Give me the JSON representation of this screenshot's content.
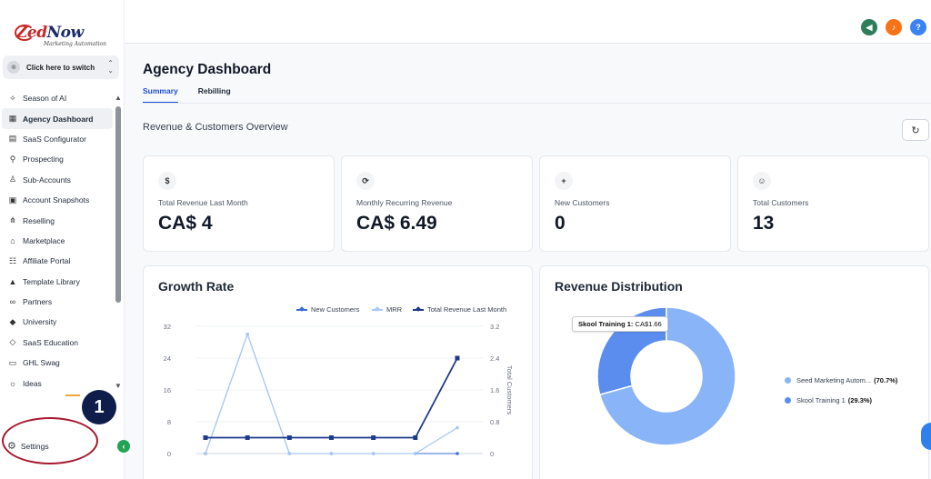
{
  "logo": {
    "brand_main": "Zed",
    "brand_rest": "Now",
    "tagline": "Marketing Automation"
  },
  "switcher": {
    "label": "Click here to switch",
    "icon": "location-pin-icon"
  },
  "sidebar": {
    "items": [
      {
        "label": "Season of AI",
        "icon": "sparkle-icon"
      },
      {
        "label": "Agency Dashboard",
        "icon": "dashboard-icon",
        "active": true
      },
      {
        "label": "SaaS Configurator",
        "icon": "bar-chart-icon"
      },
      {
        "label": "Prospecting",
        "icon": "users-search-icon"
      },
      {
        "label": "Sub-Accounts",
        "icon": "user-icon"
      },
      {
        "label": "Account Snapshots",
        "icon": "snapshot-icon"
      },
      {
        "label": "Reselling",
        "icon": "network-icon"
      },
      {
        "label": "Marketplace",
        "icon": "store-icon"
      },
      {
        "label": "Affiliate Portal",
        "icon": "affiliate-icon"
      },
      {
        "label": "Template Library",
        "icon": "shapes-icon"
      },
      {
        "label": "Partners",
        "icon": "handshake-icon"
      },
      {
        "label": "University",
        "icon": "graduation-cap-icon"
      },
      {
        "label": "SaaS Education",
        "icon": "education-icon"
      },
      {
        "label": "GHL Swag",
        "icon": "swag-icon"
      },
      {
        "label": "Ideas",
        "icon": "lightbulb-icon"
      }
    ],
    "settings_label": "Settings",
    "step_number": "1"
  },
  "topbar": {
    "icons": [
      "megaphone-icon",
      "bell-icon",
      "help-icon"
    ]
  },
  "page": {
    "title": "Agency Dashboard",
    "tabs": [
      "Summary",
      "Rebilling"
    ],
    "section_title": "Revenue & Customers Overview"
  },
  "stats": [
    {
      "icon": "$",
      "label": "Total Revenue Last Month",
      "value": "CA$ 4"
    },
    {
      "icon": "⟳",
      "label": "Monthly Recurring Revenue",
      "value": "CA$ 6.49"
    },
    {
      "icon": "+",
      "label": "New Customers",
      "value": "0"
    },
    {
      "icon": "☺",
      "label": "Total Customers",
      "value": "13"
    }
  ],
  "colors": {
    "accent": "#1d4ed8",
    "dark_series": "#1e3a8a",
    "light_series": "#a9c9f2",
    "mid_series": "#3b6fd6",
    "pie_major": "#8ab4f8",
    "pie_minor": "#5b8def"
  },
  "growth": {
    "title": "Growth Rate",
    "legend": [
      "New Customers",
      "MRR",
      "Total Revenue Last Month"
    ],
    "right_axis_label": "Total Customers"
  },
  "chart_data": [
    {
      "type": "line",
      "title": "Growth Rate",
      "ylabel": "",
      "y2label": "Total Customers",
      "ylim": [
        0,
        32
      ],
      "y2lim": [
        0,
        3.2
      ],
      "yticks": [
        "0",
        "8",
        "16",
        "24",
        "32"
      ],
      "y2ticks": [
        "0",
        "0.8",
        "1.6",
        "2.4",
        "3.2"
      ],
      "grid": true,
      "legend_position": "top-right",
      "series": [
        {
          "name": "New Customers",
          "axis": "left",
          "values": [
            0,
            30,
            0,
            0,
            0,
            0,
            0
          ]
        },
        {
          "name": "MRR",
          "axis": "left",
          "values": [
            0,
            30,
            0,
            0,
            0,
            0,
            6.5
          ]
        },
        {
          "name": "Total Revenue Last Month",
          "axis": "left",
          "values": [
            4,
            4,
            4,
            4,
            4,
            4,
            24
          ]
        }
      ]
    },
    {
      "type": "pie",
      "title": "Revenue Distribution",
      "legend_position": "right",
      "slices": [
        {
          "name": "Seed Marketing Autom...",
          "value": 70.7,
          "pct_label": "(70.7%)"
        },
        {
          "name": "Skool Training 1",
          "value": 29.3,
          "pct_label": "(29.3%)"
        }
      ],
      "tooltip": {
        "name": "Skool Training 1:",
        "value": "CA$1.66"
      }
    }
  ]
}
